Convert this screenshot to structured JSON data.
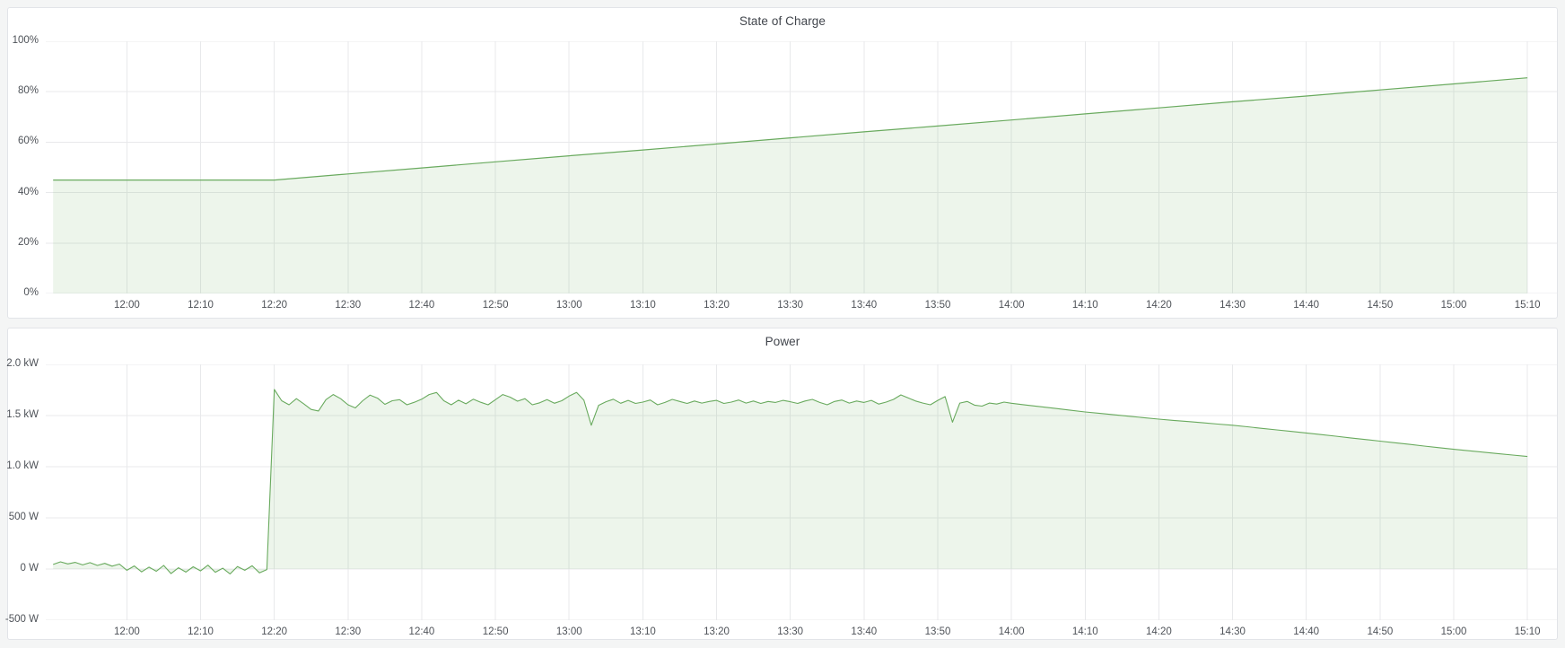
{
  "colors": {
    "page_background": "#f4f5f5",
    "panel_background": "#ffffff",
    "panel_border": "#e2e4e8",
    "title_text": "#41454c",
    "tick_text": "#4e5258",
    "series_green": "#69aa5e"
  },
  "chart_data": [
    {
      "type": "area",
      "title": "State of Charge",
      "ylabel": "",
      "xlabel": "",
      "unit": "percent",
      "line_color": "#69aa5e",
      "fill_color": "rgba(105,170,94,0.12)",
      "grid_color": "#e8e9eb",
      "line_width": 1.2,
      "xlim": [
        -11,
        194
      ],
      "ylim": [
        0,
        100
      ],
      "legend": "none",
      "grid": "on",
      "x_ticks": [
        {
          "t": 0,
          "label": "12:00"
        },
        {
          "t": 10,
          "label": "12:10"
        },
        {
          "t": 20,
          "label": "12:20"
        },
        {
          "t": 30,
          "label": "12:30"
        },
        {
          "t": 40,
          "label": "12:40"
        },
        {
          "t": 50,
          "label": "12:50"
        },
        {
          "t": 60,
          "label": "13:00"
        },
        {
          "t": 70,
          "label": "13:10"
        },
        {
          "t": 80,
          "label": "13:20"
        },
        {
          "t": 90,
          "label": "13:30"
        },
        {
          "t": 100,
          "label": "13:40"
        },
        {
          "t": 110,
          "label": "13:50"
        },
        {
          "t": 120,
          "label": "14:00"
        },
        {
          "t": 130,
          "label": "14:10"
        },
        {
          "t": 140,
          "label": "14:20"
        },
        {
          "t": 150,
          "label": "14:30"
        },
        {
          "t": 160,
          "label": "14:40"
        },
        {
          "t": 170,
          "label": "14:50"
        },
        {
          "t": 180,
          "label": "15:00"
        },
        {
          "t": 190,
          "label": "15:10"
        }
      ],
      "y_ticks": [
        {
          "v": 0,
          "label": "0%"
        },
        {
          "v": 20,
          "label": "20%"
        },
        {
          "v": 40,
          "label": "40%"
        },
        {
          "v": 60,
          "label": "60%"
        },
        {
          "v": 80,
          "label": "80%"
        },
        {
          "v": 100,
          "label": "100%"
        }
      ],
      "series": [
        {
          "name": "State of Charge",
          "unit": "%",
          "points": [
            [
              -10,
              45
            ],
            [
              -5,
              45
            ],
            [
              0,
              45
            ],
            [
              5,
              45
            ],
            [
              10,
              45
            ],
            [
              15,
              45
            ],
            [
              20,
              45
            ],
            [
              30,
              47.4
            ],
            [
              40,
              49.8
            ],
            [
              50,
              52.2
            ],
            [
              60,
              54.6
            ],
            [
              70,
              56.9
            ],
            [
              80,
              59.3
            ],
            [
              90,
              61.7
            ],
            [
              100,
              64.1
            ],
            [
              110,
              66.4
            ],
            [
              120,
              68.8
            ],
            [
              130,
              71.2
            ],
            [
              140,
              73.6
            ],
            [
              150,
              76
            ],
            [
              160,
              78.3
            ],
            [
              170,
              80.7
            ],
            [
              180,
              83.1
            ],
            [
              190,
              85.5
            ]
          ]
        }
      ]
    },
    {
      "type": "area",
      "title": "Power",
      "ylabel": "",
      "xlabel": "",
      "unit": "watts",
      "line_color": "#69aa5e",
      "fill_color": "rgba(105,170,94,0.12)",
      "grid_color": "#e8e9eb",
      "line_width": 1.1,
      "xlim": [
        -11,
        194
      ],
      "ylim": [
        -500,
        2000
      ],
      "legend": "none",
      "grid": "on",
      "x_ticks": [
        {
          "t": 0,
          "label": "12:00"
        },
        {
          "t": 10,
          "label": "12:10"
        },
        {
          "t": 20,
          "label": "12:20"
        },
        {
          "t": 30,
          "label": "12:30"
        },
        {
          "t": 40,
          "label": "12:40"
        },
        {
          "t": 50,
          "label": "12:50"
        },
        {
          "t": 60,
          "label": "13:00"
        },
        {
          "t": 70,
          "label": "13:10"
        },
        {
          "t": 80,
          "label": "13:20"
        },
        {
          "t": 90,
          "label": "13:30"
        },
        {
          "t": 100,
          "label": "13:40"
        },
        {
          "t": 110,
          "label": "13:50"
        },
        {
          "t": 120,
          "label": "14:00"
        },
        {
          "t": 130,
          "label": "14:10"
        },
        {
          "t": 140,
          "label": "14:20"
        },
        {
          "t": 150,
          "label": "14:30"
        },
        {
          "t": 160,
          "label": "14:40"
        },
        {
          "t": 170,
          "label": "14:50"
        },
        {
          "t": 180,
          "label": "15:00"
        },
        {
          "t": 190,
          "label": "15:10"
        }
      ],
      "y_ticks": [
        {
          "v": -500,
          "label": "-500 W"
        },
        {
          "v": 0,
          "label": "0 W"
        },
        {
          "v": 500,
          "label": "500 W"
        },
        {
          "v": 1000,
          "label": "1.0 kW"
        },
        {
          "v": 1500,
          "label": "1.5 kW"
        },
        {
          "v": 2000,
          "label": "2.0 kW"
        }
      ],
      "series": [
        {
          "name": "Power",
          "unit": "W",
          "points": [
            [
              -10,
              45
            ],
            [
              -9,
              70
            ],
            [
              -8,
              50
            ],
            [
              -7,
              65
            ],
            [
              -6,
              40
            ],
            [
              -5,
              62
            ],
            [
              -4,
              35
            ],
            [
              -3,
              55
            ],
            [
              -2,
              28
            ],
            [
              -1,
              48
            ],
            [
              0,
              -12
            ],
            [
              1,
              30
            ],
            [
              2,
              -28
            ],
            [
              3,
              18
            ],
            [
              4,
              -22
            ],
            [
              5,
              35
            ],
            [
              6,
              -45
            ],
            [
              7,
              12
            ],
            [
              8,
              -30
            ],
            [
              9,
              22
            ],
            [
              10,
              -18
            ],
            [
              11,
              38
            ],
            [
              12,
              -32
            ],
            [
              13,
              8
            ],
            [
              14,
              -48
            ],
            [
              15,
              25
            ],
            [
              16,
              -12
            ],
            [
              17,
              32
            ],
            [
              18,
              -38
            ],
            [
              19,
              -5
            ],
            [
              20,
              1755
            ],
            [
              21,
              1645
            ],
            [
              22,
              1605
            ],
            [
              23,
              1665
            ],
            [
              24,
              1615
            ],
            [
              25,
              1560
            ],
            [
              26,
              1545
            ],
            [
              27,
              1655
            ],
            [
              28,
              1705
            ],
            [
              29,
              1665
            ],
            [
              30,
              1605
            ],
            [
              31,
              1575
            ],
            [
              32,
              1645
            ],
            [
              33,
              1700
            ],
            [
              34,
              1670
            ],
            [
              35,
              1610
            ],
            [
              36,
              1645
            ],
            [
              37,
              1655
            ],
            [
              38,
              1605
            ],
            [
              39,
              1630
            ],
            [
              40,
              1660
            ],
            [
              41,
              1705
            ],
            [
              42,
              1725
            ],
            [
              43,
              1645
            ],
            [
              44,
              1605
            ],
            [
              45,
              1650
            ],
            [
              46,
              1615
            ],
            [
              47,
              1660
            ],
            [
              48,
              1630
            ],
            [
              49,
              1605
            ],
            [
              50,
              1655
            ],
            [
              51,
              1705
            ],
            [
              52,
              1680
            ],
            [
              53,
              1640
            ],
            [
              54,
              1665
            ],
            [
              55,
              1605
            ],
            [
              56,
              1625
            ],
            [
              57,
              1655
            ],
            [
              58,
              1620
            ],
            [
              59,
              1645
            ],
            [
              60,
              1690
            ],
            [
              61,
              1725
            ],
            [
              62,
              1650
            ],
            [
              63,
              1405
            ],
            [
              64,
              1600
            ],
            [
              65,
              1635
            ],
            [
              66,
              1660
            ],
            [
              67,
              1620
            ],
            [
              68,
              1648
            ],
            [
              69,
              1618
            ],
            [
              70,
              1632
            ],
            [
              71,
              1652
            ],
            [
              72,
              1605
            ],
            [
              73,
              1628
            ],
            [
              74,
              1658
            ],
            [
              75,
              1638
            ],
            [
              76,
              1618
            ],
            [
              77,
              1642
            ],
            [
              78,
              1622
            ],
            [
              79,
              1638
            ],
            [
              80,
              1648
            ],
            [
              81,
              1618
            ],
            [
              82,
              1632
            ],
            [
              83,
              1652
            ],
            [
              84,
              1622
            ],
            [
              85,
              1642
            ],
            [
              86,
              1618
            ],
            [
              87,
              1638
            ],
            [
              88,
              1628
            ],
            [
              89,
              1648
            ],
            [
              90,
              1635
            ],
            [
              91,
              1618
            ],
            [
              92,
              1642
            ],
            [
              93,
              1658
            ],
            [
              94,
              1628
            ],
            [
              95,
              1605
            ],
            [
              96,
              1638
            ],
            [
              97,
              1652
            ],
            [
              98,
              1622
            ],
            [
              99,
              1642
            ],
            [
              100,
              1628
            ],
            [
              101,
              1648
            ],
            [
              102,
              1612
            ],
            [
              103,
              1632
            ],
            [
              104,
              1658
            ],
            [
              105,
              1702
            ],
            [
              106,
              1672
            ],
            [
              107,
              1642
            ],
            [
              108,
              1622
            ],
            [
              109,
              1605
            ],
            [
              110,
              1648
            ],
            [
              111,
              1685
            ],
            [
              112,
              1435
            ],
            [
              113,
              1622
            ],
            [
              114,
              1638
            ],
            [
              115,
              1602
            ],
            [
              116,
              1592
            ],
            [
              117,
              1622
            ],
            [
              118,
              1612
            ],
            [
              119,
              1632
            ],
            [
              120,
              1620
            ],
            [
              122,
              1603
            ],
            [
              124,
              1586
            ],
            [
              126,
              1569
            ],
            [
              128,
              1552
            ],
            [
              130,
              1535
            ],
            [
              132,
              1521
            ],
            [
              134,
              1507
            ],
            [
              136,
              1493
            ],
            [
              138,
              1479
            ],
            [
              140,
              1465
            ],
            [
              142,
              1453
            ],
            [
              144,
              1441
            ],
            [
              146,
              1429
            ],
            [
              148,
              1417
            ],
            [
              150,
              1405
            ],
            [
              152,
              1390
            ],
            [
              154,
              1375
            ],
            [
              156,
              1360
            ],
            [
              158,
              1345
            ],
            [
              160,
              1330
            ],
            [
              162,
              1314
            ],
            [
              164,
              1298
            ],
            [
              166,
              1282
            ],
            [
              168,
              1266
            ],
            [
              170,
              1250
            ],
            [
              172,
              1234
            ],
            [
              174,
              1218
            ],
            [
              176,
              1202
            ],
            [
              178,
              1186
            ],
            [
              180,
              1170
            ],
            [
              182,
              1156
            ],
            [
              184,
              1142
            ],
            [
              186,
              1128
            ],
            [
              188,
              1114
            ],
            [
              190,
              1100
            ]
          ]
        }
      ]
    }
  ]
}
